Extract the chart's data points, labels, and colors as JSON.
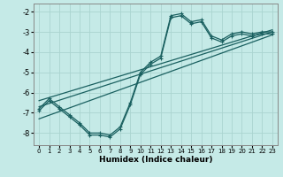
{
  "xlabel": "Humidex (Indice chaleur)",
  "xlim": [
    -0.5,
    23.5
  ],
  "ylim": [
    -8.6,
    -1.6
  ],
  "yticks": [
    -8,
    -7,
    -6,
    -5,
    -4,
    -3,
    -2
  ],
  "xticks": [
    0,
    1,
    2,
    3,
    4,
    5,
    6,
    7,
    8,
    9,
    10,
    11,
    12,
    13,
    14,
    15,
    16,
    17,
    18,
    19,
    20,
    21,
    22,
    23
  ],
  "bg_color": "#c5eae7",
  "grid_color": "#aad4d0",
  "line_color": "#1a6060",
  "curve1_x": [
    0,
    1,
    2,
    3,
    4,
    5,
    6,
    7,
    8,
    9,
    10,
    11,
    12,
    13,
    14,
    15,
    16,
    17,
    18,
    19,
    20,
    21,
    22,
    23
  ],
  "curve1_y": [
    -6.8,
    -6.3,
    -6.7,
    -7.1,
    -7.5,
    -8.0,
    -8.0,
    -8.1,
    -7.7,
    -6.5,
    -5.0,
    -4.5,
    -4.2,
    -2.2,
    -2.1,
    -2.5,
    -2.4,
    -3.2,
    -3.4,
    -3.1,
    -3.0,
    -3.1,
    -3.0,
    -3.0
  ],
  "curve2_x": [
    0,
    1,
    2,
    3,
    4,
    5,
    6,
    7,
    8,
    9,
    10,
    11,
    12,
    13,
    14,
    15,
    16,
    17,
    18,
    19,
    20,
    21,
    22,
    23
  ],
  "curve2_y": [
    -6.9,
    -6.4,
    -6.8,
    -7.2,
    -7.6,
    -8.1,
    -8.1,
    -8.2,
    -7.8,
    -6.6,
    -5.1,
    -4.6,
    -4.3,
    -2.3,
    -2.2,
    -2.6,
    -2.5,
    -3.3,
    -3.5,
    -3.2,
    -3.1,
    -3.2,
    -3.1,
    -3.1
  ],
  "line1_x": [
    0,
    23
  ],
  "line1_y": [
    -6.7,
    -3.0
  ],
  "line2_x": [
    0,
    23
  ],
  "line2_y": [
    -6.4,
    -2.9
  ],
  "line3_x": [
    0,
    23
  ],
  "line3_y": [
    -7.3,
    -3.15
  ]
}
